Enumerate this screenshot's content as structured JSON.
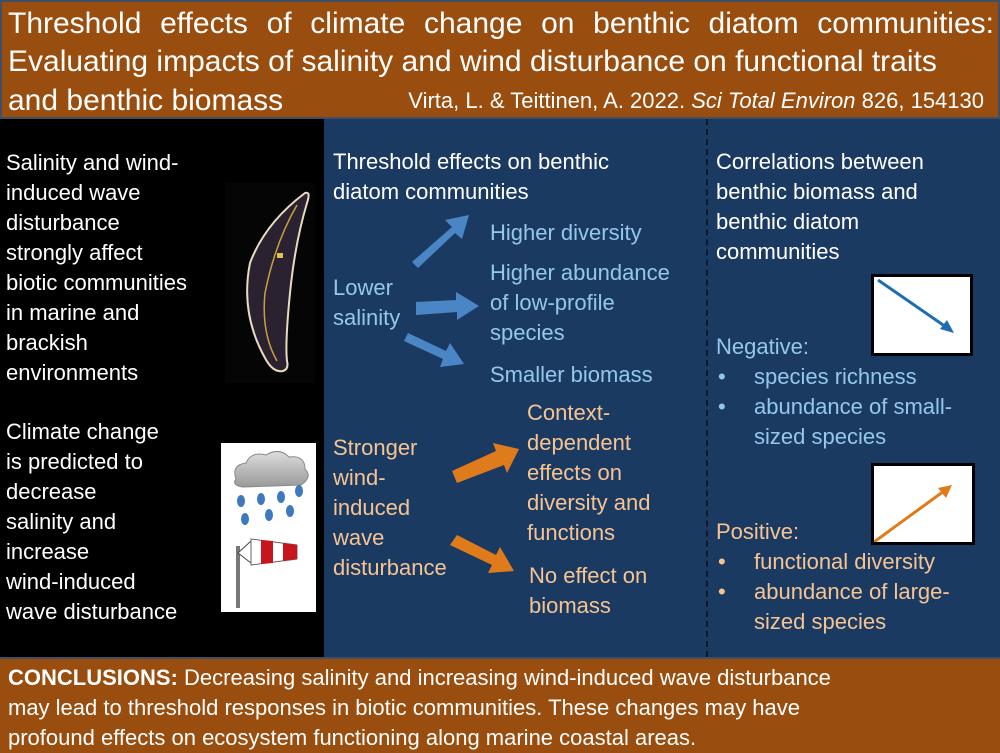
{
  "header": {
    "title_lines": [
      "Threshold effects of climate change on benthic diatom communities:",
      "Evaluating impacts of salinity and wind disturbance on functional traits",
      "and benthic biomass"
    ],
    "citation": {
      "authors": "Virta, L. & Teittinen, A. 2022.",
      "journal": "Sci Total Environ",
      "ref": "826, 154130"
    }
  },
  "left": {
    "block1": [
      "Salinity and wind-",
      "induced wave",
      "disturbance",
      "strongly affect",
      "biotic communities",
      "in marine and",
      "brackish",
      "environments"
    ],
    "block2": [
      "Climate change",
      "is predicted to",
      "decrease",
      "salinity and",
      "increase",
      "wind-induced",
      "wave disturbance"
    ],
    "images": [
      "diatom-micrograph",
      "rain-cloud-icon",
      "windsock-icon"
    ]
  },
  "middle": {
    "heading": [
      "Threshold effects on benthic",
      "diatom communities"
    ],
    "salinity_driver": [
      "Lower",
      "salinity"
    ],
    "salinity_effects": [
      "Higher diversity",
      "Higher abundance",
      "of low-profile",
      "species",
      "Smaller biomass"
    ],
    "wind_driver": [
      "Stronger",
      "wind-",
      "induced",
      "wave",
      "disturbance"
    ],
    "wind_effects": [
      "Context-",
      "dependent",
      "effects on",
      "diversity and",
      "functions",
      "No effect on",
      "biomass"
    ]
  },
  "right": {
    "heading": [
      "Correlations between",
      "benthic biomass and",
      "benthic diatom",
      "communities"
    ],
    "negative": {
      "label": "Negative:",
      "items": [
        "species richness",
        "abundance of small-",
        "sized species"
      ]
    },
    "positive": {
      "label": "Positive:",
      "items": [
        "functional diversity",
        "abundance of large-",
        "sized species"
      ]
    },
    "bullet": "•"
  },
  "footer": {
    "label": "CONCLUSIONS:",
    "text": [
      " Decreasing salinity and increasing wind-induced wave disturbance",
      "may lead to threshold responses in biotic communities. These changes may have",
      "profound effects on ecosystem functioning along marine coastal areas."
    ]
  },
  "colors": {
    "header_bg": "#994d0e",
    "panel_blue": "#1b3a62",
    "salinity_arrow": "#4a86c6",
    "wind_arrow": "#e07b1b",
    "text_blue": "#94c8ea",
    "text_orange": "#f6c493"
  }
}
